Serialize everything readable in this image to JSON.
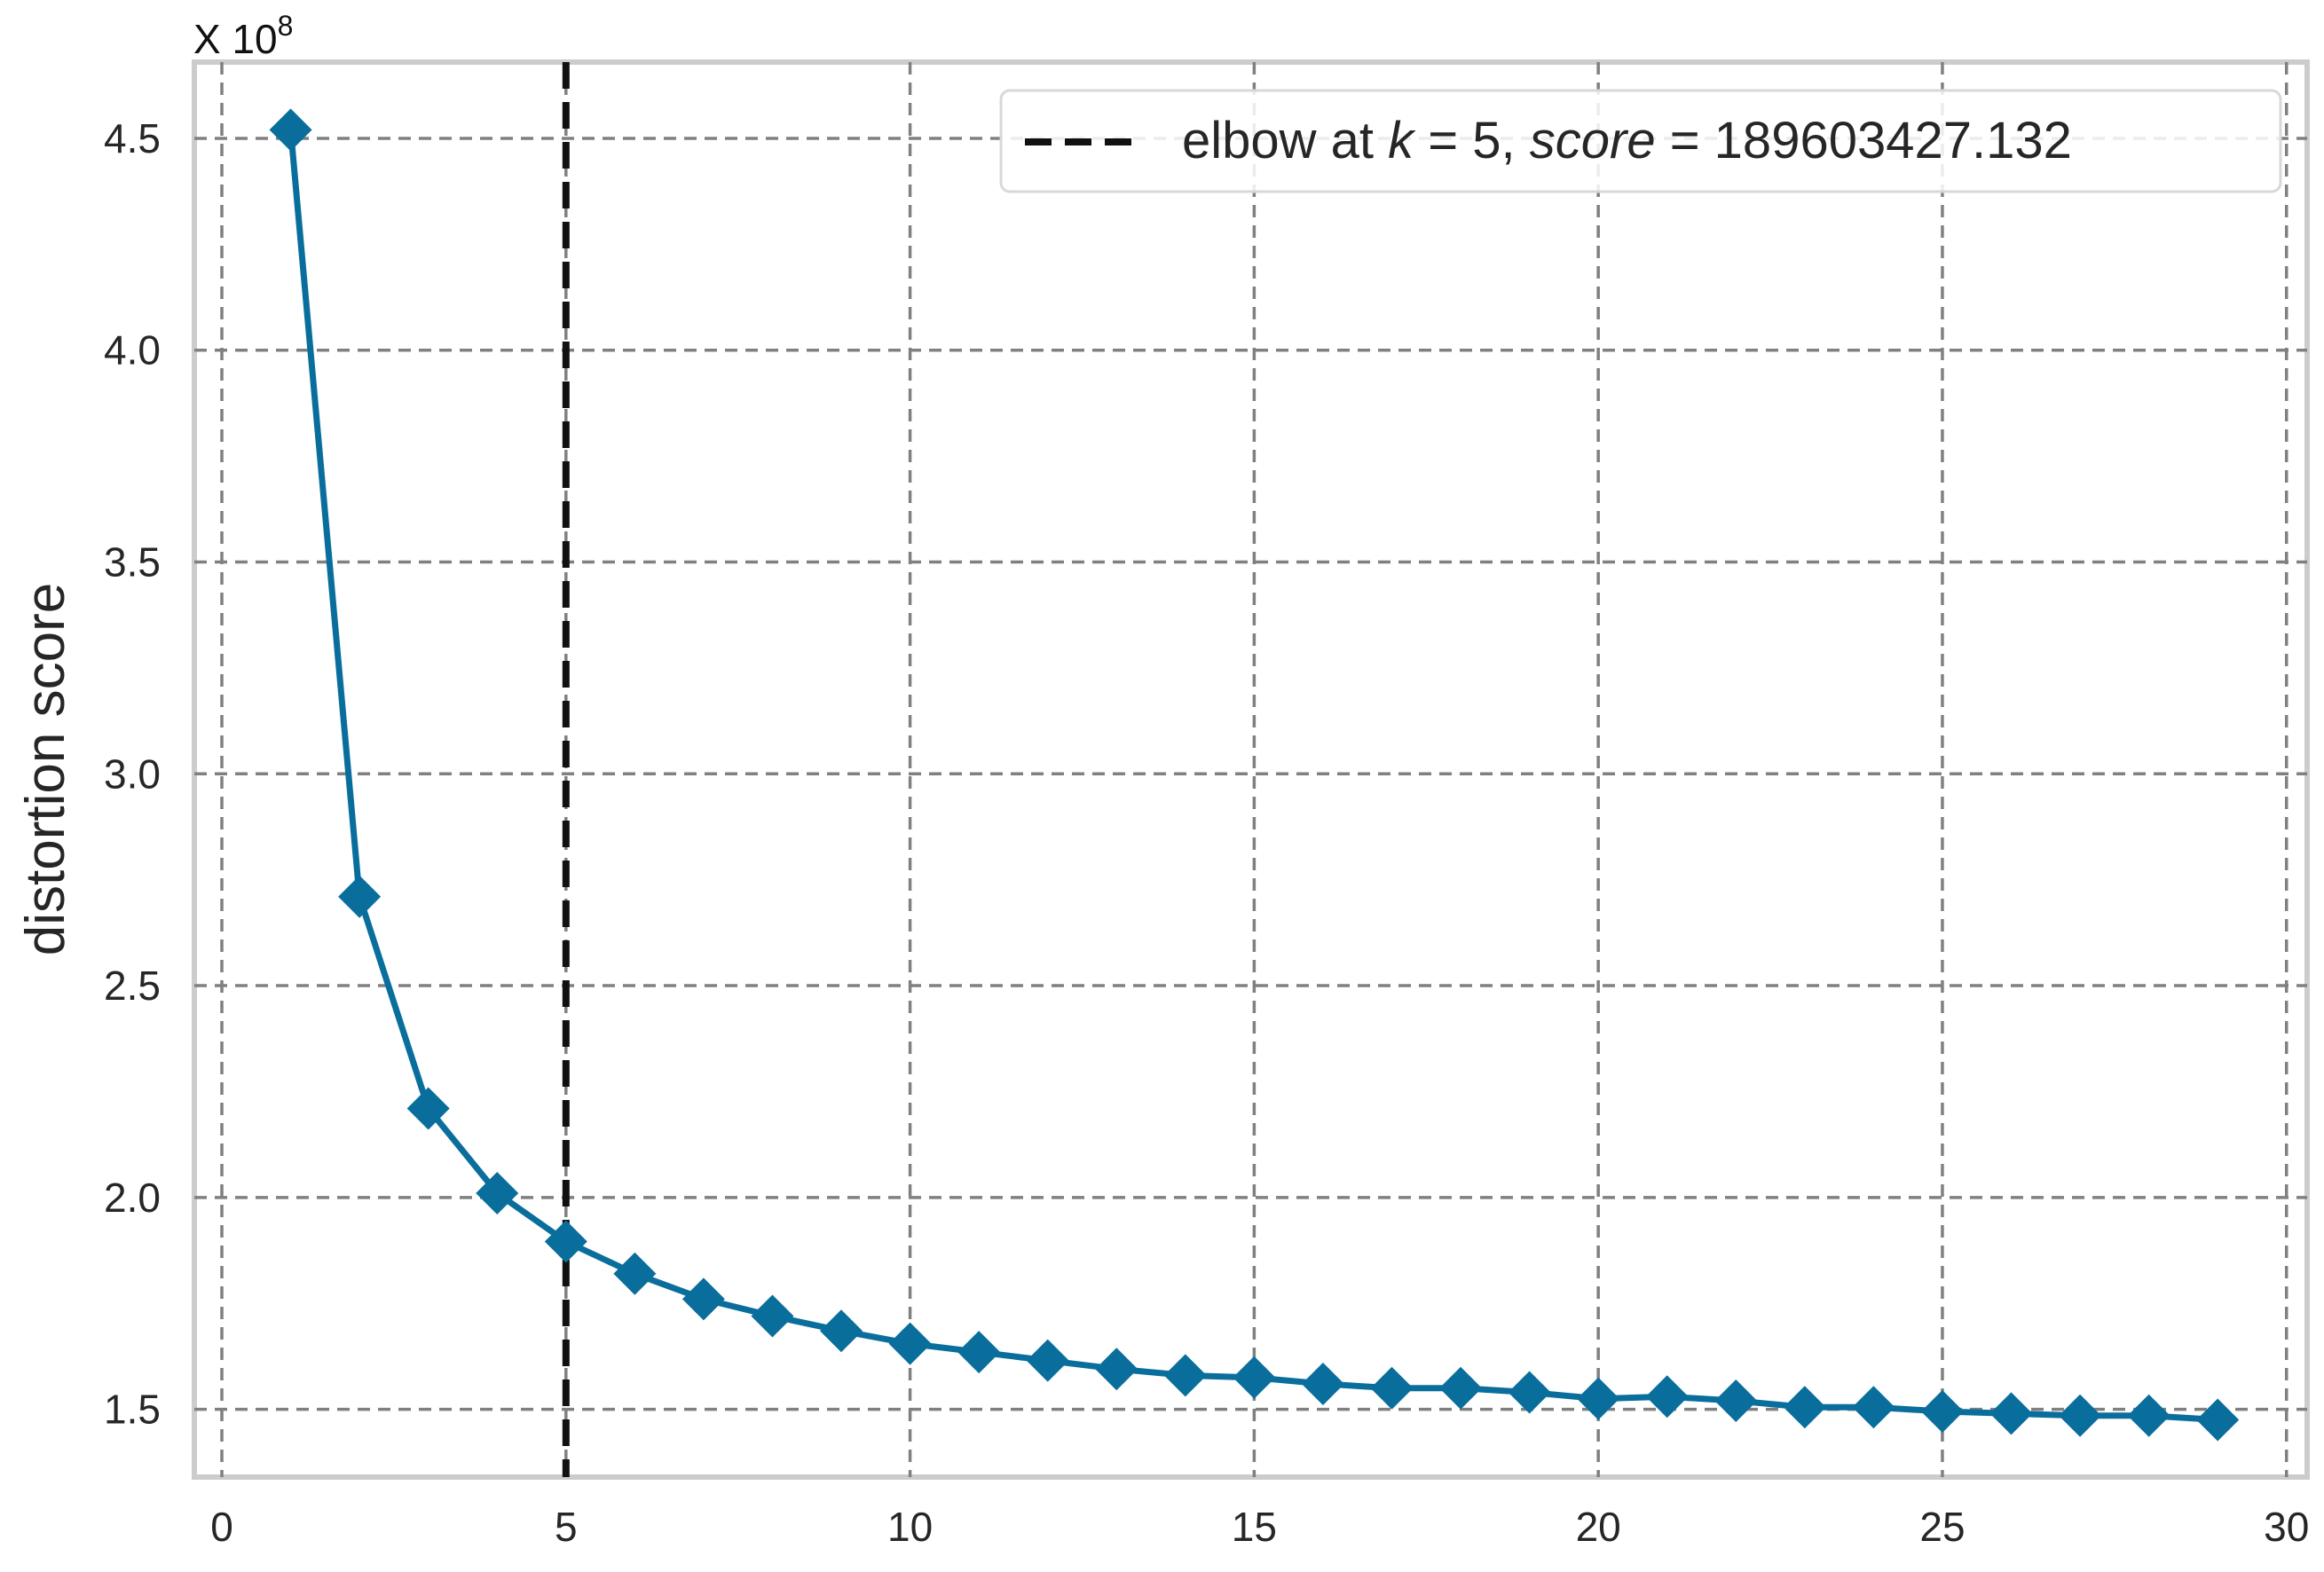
{
  "chart_data": {
    "type": "line",
    "ylabel": "distortion score",
    "xlabel": "",
    "title": "",
    "y_multiplier": {
      "prefix": "X 10",
      "exponent": "8"
    },
    "x_ticks": [
      0,
      5,
      10,
      15,
      20,
      25,
      30
    ],
    "x_tick_labels": [
      "0",
      "5",
      "10",
      "15",
      "20",
      "25",
      "30"
    ],
    "y_ticks": [
      1.5,
      2.0,
      2.5,
      3.0,
      3.5,
      4.0,
      4.5
    ],
    "y_tick_labels": [
      "1.5",
      "2.0",
      "2.5",
      "3.0",
      "3.5",
      "4.0",
      "4.5"
    ],
    "xlim": [
      -0.4,
      30.3
    ],
    "ylim": [
      1.34,
      4.68
    ],
    "grid": true,
    "legend_position": "top-right",
    "series": [
      {
        "color": "#0a6e9c",
        "marker": "diamond",
        "x": [
          1,
          2,
          3,
          4,
          5,
          6,
          7,
          8,
          9,
          10,
          11,
          12,
          13,
          14,
          15,
          16,
          17,
          18,
          19,
          20,
          21,
          22,
          23,
          24,
          25,
          26,
          27,
          28,
          29
        ],
        "values": [
          4.52,
          2.71,
          2.21,
          2.01,
          1.896,
          1.82,
          1.76,
          1.72,
          1.685,
          1.655,
          1.635,
          1.615,
          1.595,
          1.58,
          1.575,
          1.56,
          1.55,
          1.55,
          1.54,
          1.525,
          1.53,
          1.52,
          1.505,
          1.505,
          1.495,
          1.49,
          1.485,
          1.485,
          1.475
        ]
      }
    ],
    "elbow": {
      "x": 5,
      "color": "#111111",
      "legend": {
        "prefix": "elbow at ",
        "k_symbol": "k",
        "k_part": " = 5, ",
        "score_symbol": "score",
        "score_part": " = 189603427.132"
      }
    }
  }
}
